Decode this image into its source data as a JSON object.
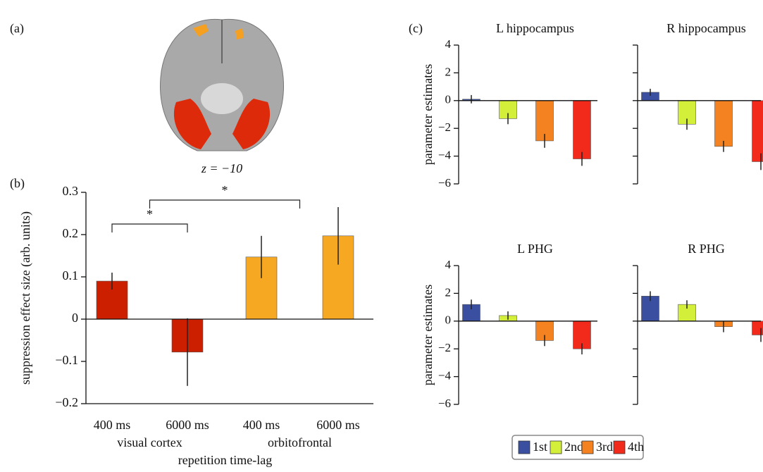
{
  "figure": {
    "panel_labels": [
      "(a)",
      "(b)",
      "(c)"
    ],
    "brain_caption": "z = −10"
  },
  "legend": {
    "entries": [
      {
        "name": "1st",
        "color": "#3a4fa0"
      },
      {
        "name": "2nd",
        "color": "#d4ef3a"
      },
      {
        "name": "3rd",
        "color": "#f58220"
      },
      {
        "name": "4th",
        "color": "#f22a1c"
      }
    ]
  },
  "chart_data": [
    {
      "type": "bar",
      "ylabel": "suppression effect size (arb. units)",
      "xlabel": "repetition time-lag",
      "categories": [
        "400 ms",
        "6000 ms",
        "400 ms",
        "6000 ms"
      ],
      "groups": [
        "visual cortex",
        "orbitofrontal"
      ],
      "values": [
        0.09,
        -0.078,
        0.147,
        0.197
      ],
      "errors": [
        0.02,
        0.08,
        0.05,
        0.068
      ],
      "colors": [
        "#cc1f00",
        "#cc1f00",
        "#f7a823",
        "#f7a823"
      ],
      "ylim": [
        -0.2,
        0.3
      ],
      "yticks": [
        {
          "value": -0.2,
          "label": "−0.2"
        },
        {
          "value": -0.1,
          "label": "−0.1"
        },
        0,
        0.1,
        0.2,
        0.3
      ],
      "annotations": [
        "*",
        "*"
      ]
    },
    {
      "type": "bar",
      "title": "L hippocampus",
      "ylabel": "parameter estimates",
      "values": [
        0.1,
        -1.3,
        -2.9,
        -4.2
      ],
      "errors": [
        0.3,
        0.4,
        0.5,
        0.5
      ],
      "ylim": [
        -6,
        4
      ],
      "yticks": [
        {
          "value": -6,
          "label": "−6"
        },
        {
          "value": -4,
          "label": "−4"
        },
        {
          "value": -2,
          "label": "−2"
        },
        0,
        2,
        4
      ],
      "show_ytick_labels": true
    },
    {
      "type": "bar",
      "title": "R hippocampus",
      "values": [
        0.6,
        -1.7,
        -3.3,
        -4.4
      ],
      "errors": [
        0.25,
        0.4,
        0.4,
        0.6
      ],
      "ylim": [
        -6,
        4
      ],
      "yticks": [
        -6,
        -4,
        -2,
        0,
        2,
        4
      ],
      "show_ytick_labels": false
    },
    {
      "type": "bar",
      "title": "L PHG",
      "ylabel": "parameter estimates",
      "values": [
        1.2,
        0.4,
        -1.4,
        -2.0
      ],
      "errors": [
        0.35,
        0.3,
        0.4,
        0.4
      ],
      "ylim": [
        -6,
        4
      ],
      "yticks": [
        {
          "value": -6,
          "label": "−6"
        },
        {
          "value": -4,
          "label": "−4"
        },
        {
          "value": -2,
          "label": "−2"
        },
        0,
        2,
        4
      ],
      "show_ytick_labels": true
    },
    {
      "type": "bar",
      "title": "R PHG",
      "values": [
        1.8,
        1.2,
        -0.4,
        -1.0
      ],
      "errors": [
        0.35,
        0.3,
        0.4,
        0.5
      ],
      "ylim": [
        -6,
        4
      ],
      "yticks": [
        -6,
        -4,
        -2,
        0,
        2,
        4
      ],
      "show_ytick_labels": false
    }
  ]
}
